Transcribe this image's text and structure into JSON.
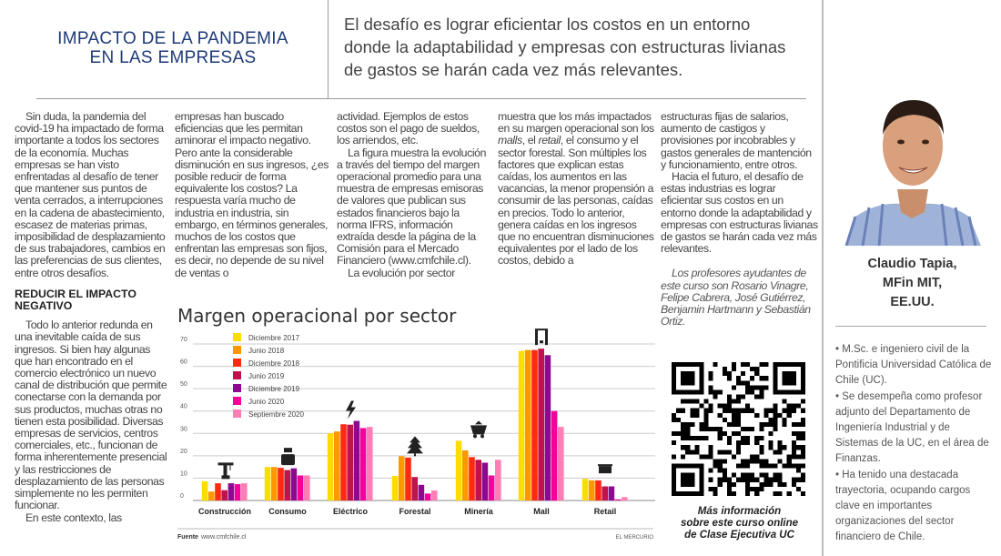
{
  "header": {
    "title_line1": "IMPACTO DE LA PANDEMIA",
    "title_line2": "EN LAS EMPRESAS",
    "quote": "El desafío es lograr eficientar los costos en un entorno donde la adaptabilidad y empresas con estructuras livianas de gastos se harán cada vez más relevantes."
  },
  "article": {
    "p1": "Sin duda, la pandemia del covid-19 ha impactado de forma importante a todos los sectores de la economía. Muchas empresas se han visto enfrentadas al desafío de tener que mantener sus puntos de venta cerrados, a interrupciones en la cadena de abastecimiento, escasez de materias primas, imposibilidad de desplazamiento de sus trabajadores, cambios en las preferencias de sus clientes, entre otros desafíos.",
    "subheading": "REDUCIR EL IMPACTO NEGATIVO",
    "p2": "Todo lo anterior redunda en una inevitable caída de sus ingresos. Si bien hay algunas que han encontrado en el comercio electrónico un nuevo canal de distribución que permite conectarse con la demanda por sus productos, muchas otras no tienen esta posibilidad. Diversas empresas de servicios, centros comerciales, etc., funcionan de forma inherentemente presencial y las restricciones de desplazamiento de las personas simplemente no les permiten funcionar.",
    "p3": "En este contexto, las",
    "col2": "empresas han buscado eficiencias que les permitan aminorar el impacto negativo. Pero ante la considerable disminución en sus ingresos, ¿es posible reducir de forma equivalente los costos? La respuesta varía mucho de industria en industria, sin embargo, en términos generales, muchos de los costos que enfrentan las empresas son fijos, es decir, no depende de su nivel de ventas o",
    "col3a": "actividad. Ejemplos de estos costos son el pago de sueldos, los arriendos, etc.",
    "col3b": "La figura muestra la evolución a través del tiempo del margen operacional promedio para una muestra de empresas emisoras de valores que publican sus estados financieros bajo la norma IFRS, información extraída desde la página de la Comisión para el Mercado Financiero (www.cmfchile.cl).",
    "col3c": "La evolución por sector",
    "col4_pre": "muestra que los más impactados en su margen operacional son los ",
    "col4_malls": "malls",
    "col4_mid": ", el ",
    "col4_retail": "retail",
    "col4_post": ", el consumo y el sector forestal. Son múltiples los factores que explican estas caídas, los aumentos en las vacancias, la menor propensión a consumir de las personas, caídas en precios. Todo lo anterior, genera caídas en los ingresos que no encuentran disminuciones equivalentes por el lado de los costos, debido a",
    "col5a": "estructuras fijas de salarios, aumento de castigos y provisiones por incobrables y gastos generales de mantención y funcionamiento, entre otros.",
    "col5b": "Hacia el futuro, el desafío de estas industrias es lograr eficientar sus costos en un entorno donde la adaptabilidad y empresas con estructuras livianas de gastos se harán cada vez más relevantes.",
    "credits": "Los profesores ayudantes de este curso son Rosario Vinagre, Felipe Cabrera, José Gutiérrez, Benjamin Hartmann y Sebastián Ortiz."
  },
  "qr": {
    "caption_line1": "Más información",
    "caption_line2": "sobre este curso online",
    "caption_line3": "de Clase Ejecutiva UC"
  },
  "author": {
    "name": "Claudio Tapia,",
    "degree": "MFin MIT,",
    "country": "EE.UU.",
    "bio": [
      "• M.Sc. e ingeniero civil de la Pontificia Universidad Católica de Chile (UC).",
      "• Se desempeña como profesor adjunto del Departamento de Ingeniería Industrial y de Sistemas de la UC, en el área de Finanzas.",
      "• Ha tenido una destacada trayectoria, ocupando cargos clave en importantes organizaciones del sector financiero de Chile."
    ]
  },
  "chart_data": {
    "type": "bar",
    "title": "Margen operacional por sector",
    "xlabel": "",
    "ylabel": "",
    "ylim": [
      0,
      70
    ],
    "yticks": [
      0,
      10,
      20,
      30,
      40,
      50,
      60,
      70
    ],
    "grid": true,
    "legend_position": "top-left",
    "categories": [
      "Construcción",
      "Consumo",
      "Eléctrico",
      "Forestal",
      "Minería",
      "Mall",
      "Retail"
    ],
    "series": [
      {
        "name": "Diciembre 2017",
        "color": "#ffdc00",
        "values": [
          8.6,
          15,
          30,
          11,
          26.7,
          66.9,
          9.7
        ]
      },
      {
        "name": "Junio 2018",
        "color": "#ff9800",
        "values": [
          4,
          15,
          30.9,
          19.8,
          22.4,
          67.3,
          9
        ]
      },
      {
        "name": "Diciembre 2018",
        "color": "#ff2a12",
        "values": [
          7.7,
          14.6,
          34.1,
          19.2,
          19.4,
          67.3,
          9
        ]
      },
      {
        "name": "Junio 2019",
        "color": "#c0124c",
        "values": [
          4.6,
          13.6,
          33.9,
          10.5,
          18.2,
          67.9,
          6.3
        ]
      },
      {
        "name": "Diciembre 2019",
        "color": "#8c0a90",
        "values": [
          7.7,
          14.4,
          35.6,
          7,
          16.9,
          65,
          6.3
        ]
      },
      {
        "name": "Junio 2020",
        "color": "#f5009a",
        "values": [
          7.3,
          11.2,
          32.4,
          3.1,
          11.2,
          40,
          0.5
        ]
      },
      {
        "name": "Septiembre 2020",
        "color": "#ff7eb4",
        "values": [
          7.7,
          11.2,
          32.9,
          4.5,
          18.2,
          32.9,
          1.5
        ]
      }
    ],
    "source_label": "Fuente",
    "source": "www.cmfchile.cl",
    "publisher": "EL MERCURIO"
  }
}
